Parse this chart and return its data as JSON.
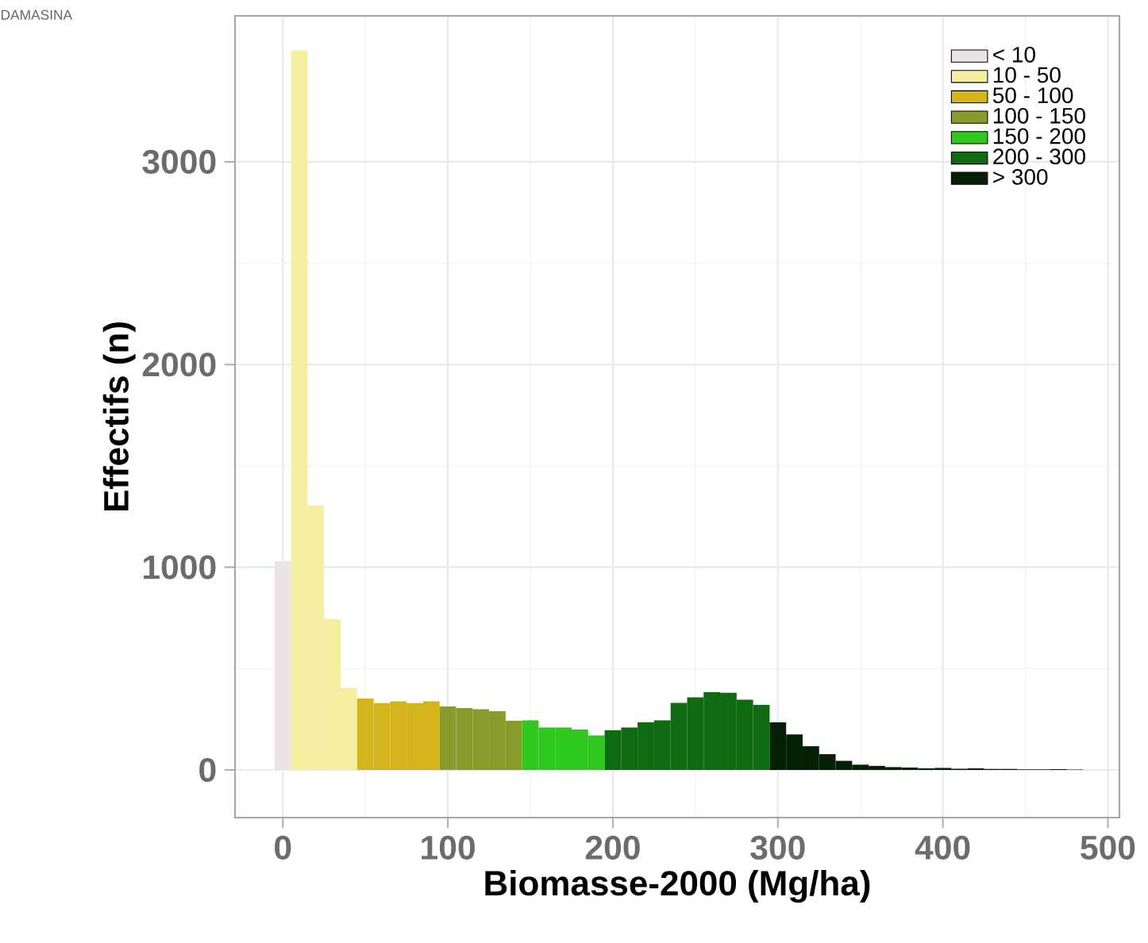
{
  "chart_data": {
    "type": "histogram",
    "title": "DAMASINA",
    "xlabel": "Biomasse-2000 (Mg/ha)",
    "ylabel": "Effectifs (n)",
    "bins": [
      -5,
      5,
      15,
      25,
      35,
      45,
      55,
      65,
      75,
      85,
      95,
      105,
      115,
      125,
      135,
      145,
      155,
      165,
      175,
      185,
      195,
      205,
      215,
      225,
      235,
      245,
      255,
      265,
      275,
      285,
      295,
      305,
      315,
      325,
      335,
      345,
      355,
      365,
      375,
      385,
      395,
      405,
      415,
      425,
      435,
      445,
      455,
      465,
      475,
      485
    ],
    "series": [
      {
        "name": "< 10",
        "color": "#ece4e4",
        "values": [
          1030,
          null,
          null,
          null,
          null,
          null,
          null,
          null,
          null,
          null,
          null,
          null,
          null,
          null,
          null,
          null,
          null,
          null,
          null,
          null,
          null,
          null,
          null,
          null,
          null,
          null,
          null,
          null,
          null,
          null,
          null,
          null,
          null,
          null,
          null,
          null,
          null,
          null,
          null,
          null,
          null,
          null,
          null,
          null,
          null,
          null,
          null,
          null,
          null
        ]
      },
      {
        "name": "10 - 50",
        "color": "#f3eea0",
        "values": [
          null,
          3550,
          1305,
          744,
          405,
          null,
          null,
          null,
          null,
          null,
          null,
          null,
          null,
          null,
          null,
          null,
          null,
          null,
          null,
          null,
          null,
          null,
          null,
          null,
          null,
          null,
          null,
          null,
          null,
          null,
          null,
          null,
          null,
          null,
          null,
          null,
          null,
          null,
          null,
          null,
          null,
          null,
          null,
          null,
          null,
          null,
          null,
          null,
          null
        ]
      },
      {
        "name": "50 - 100",
        "color": "#d4b41c",
        "values": [
          null,
          null,
          null,
          null,
          null,
          352,
          330,
          339,
          330,
          339,
          null,
          null,
          null,
          null,
          null,
          null,
          null,
          null,
          null,
          null,
          null,
          null,
          null,
          null,
          null,
          null,
          null,
          null,
          null,
          null,
          null,
          null,
          null,
          null,
          null,
          null,
          null,
          null,
          null,
          null,
          null,
          null,
          null,
          null,
          null,
          null,
          null,
          null,
          null
        ]
      },
      {
        "name": "100 - 150",
        "color": "#8a9a2c",
        "values": [
          null,
          null,
          null,
          null,
          null,
          null,
          null,
          null,
          null,
          null,
          313,
          305,
          300,
          290,
          243,
          null,
          null,
          null,
          null,
          null,
          null,
          null,
          null,
          null,
          null,
          null,
          null,
          null,
          null,
          null,
          null,
          null,
          null,
          null,
          null,
          null,
          null,
          null,
          null,
          null,
          null,
          null,
          null,
          null,
          null,
          null,
          null,
          null,
          null
        ]
      },
      {
        "name": "150 - 200",
        "color": "#2ec81e",
        "values": [
          null,
          null,
          null,
          null,
          null,
          null,
          null,
          null,
          null,
          null,
          null,
          null,
          null,
          null,
          null,
          245,
          209,
          209,
          200,
          170,
          null,
          null,
          null,
          null,
          null,
          null,
          null,
          null,
          null,
          null,
          null,
          null,
          null,
          null,
          null,
          null,
          null,
          null,
          null,
          null,
          null,
          null,
          null,
          null,
          null,
          null,
          null,
          null,
          null
        ]
      },
      {
        "name": "200 - 300",
        "color": "#0f6a12",
        "values": [
          null,
          null,
          null,
          null,
          null,
          null,
          null,
          null,
          null,
          null,
          null,
          null,
          null,
          null,
          null,
          null,
          null,
          null,
          null,
          null,
          196,
          209,
          235,
          245,
          331,
          358,
          384,
          381,
          347,
          321,
          null,
          null,
          null,
          null,
          null,
          null,
          null,
          null,
          null,
          null,
          null,
          null,
          null,
          null,
          null,
          null,
          null,
          null,
          null
        ]
      },
      {
        "name": "> 300",
        "color": "#062006",
        "values": [
          null,
          null,
          null,
          null,
          null,
          null,
          null,
          null,
          null,
          null,
          null,
          null,
          null,
          null,
          null,
          null,
          null,
          null,
          null,
          null,
          null,
          null,
          null,
          null,
          null,
          null,
          null,
          null,
          null,
          null,
          235,
          175,
          117,
          78,
          45,
          26,
          20,
          14,
          12,
          8,
          10,
          6,
          8,
          5,
          5,
          3,
          3,
          4,
          2
        ]
      }
    ],
    "xlim": [
      -29,
      507
    ],
    "ylim": [
      -235,
      3720
    ],
    "xticks": [
      0,
      100,
      200,
      300,
      400,
      500
    ],
    "yticks": [
      0,
      1000,
      2000,
      3000
    ],
    "grid": true,
    "legend": "top right"
  }
}
